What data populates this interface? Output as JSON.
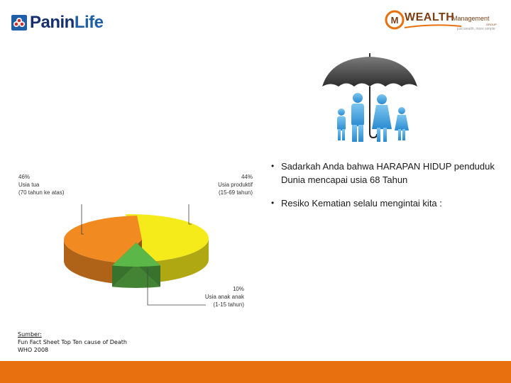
{
  "brand": {
    "left_logo_part1": "Panin",
    "left_logo_part2": "Life",
    "right_logo_main": "WEALTH",
    "right_logo_sub": "Management",
    "right_logo_group": "GROUP",
    "right_logo_tagline": "just wealth, more simple"
  },
  "bullets": [
    "Sadarkah Anda bahwa HARAPAN HIDUP penduduk Dunia mencapai usia 68 Tahun",
    "Resiko Kematian selalu mengintai kita :"
  ],
  "source": {
    "title": "Sumber:",
    "line1": "Fun Fact Sheet Top Ten cause of Death",
    "line2": "WHO 2008"
  },
  "colors": {
    "accent_orange": "#e8700e",
    "slice_old": "#f5ea1a",
    "slice_productive": "#f28a22",
    "slice_children": "#5bb848"
  },
  "chart_data": {
    "type": "pie",
    "style": "3d",
    "slices": [
      {
        "pct_label": "46%",
        "label1": "Usia tua",
        "label2": "(70 tahun ke atas)",
        "value": 46,
        "color": "#f5ea1a"
      },
      {
        "pct_label": "44%",
        "label1": "Usia produktif",
        "label2": "(15-69 tahun)",
        "value": 44,
        "color": "#f28a22"
      },
      {
        "pct_label": "10%",
        "label1": "Usia anak anak",
        "label2": "(1-15 tahun)",
        "value": 10,
        "color": "#5bb848"
      }
    ]
  }
}
